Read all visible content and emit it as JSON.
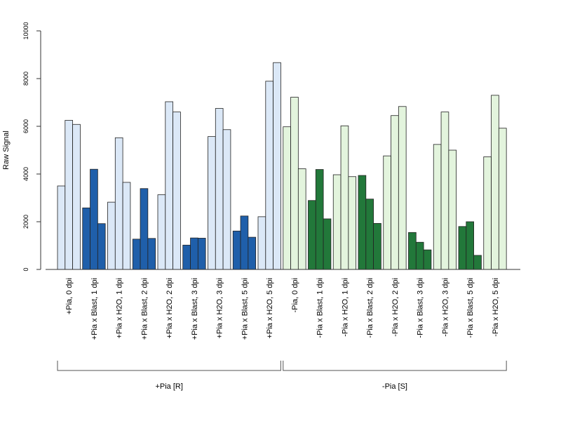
{
  "chart_data": {
    "type": "bar",
    "ylabel": "Raw Signal",
    "ylim": [
      0,
      10000
    ],
    "yticks": [
      0,
      2000,
      4000,
      6000,
      8000,
      10000
    ],
    "categories": [
      "+Pia, 0 dpi",
      "+Pia x Blast, 1 dpi",
      "+Pia x H2O, 1 dpi",
      "+Pia x Blast, 2 dpi",
      "+Pia x H2O, 2 dpi",
      "+Pia x Blast, 3 dpi",
      "+Pia x H2O, 3 dpi",
      "+Pia x Blast, 5 dpi",
      "+Pia x H2O, 5 dpi",
      "-Pia, 0 dpi",
      "-Pia x Blast, 1 dpi",
      "-Pia x H2O, 1 dpi",
      "-Pia x Blast, 2 dpi",
      "-Pia x H2O, 2 dpi",
      "-Pia x Blast, 3 dpi",
      "-Pia x H2O, 3 dpi",
      "-Pia x Blast, 5 dpi",
      "-Pia x H2O, 5 dpi"
    ],
    "values": [
      [
        3500,
        6250,
        6080
      ],
      [
        2580,
        4200,
        1920
      ],
      [
        2820,
        5520,
        3650
      ],
      [
        1270,
        3390,
        1300
      ],
      [
        3130,
        7030,
        6600
      ],
      [
        1020,
        1320,
        1310
      ],
      [
        5570,
        6750,
        5860
      ],
      [
        1610,
        2240,
        1350
      ],
      [
        2210,
        7890,
        8670
      ],
      [
        5980,
        7220,
        4220
      ],
      [
        2890,
        4190,
        2120
      ],
      [
        3970,
        6020,
        3890
      ],
      [
        3940,
        2950,
        1930
      ],
      [
        4760,
        6450,
        6830
      ],
      [
        1550,
        1140,
        820
      ],
      [
        5240,
        6600,
        5000
      ],
      [
        1800,
        2000,
        590
      ],
      [
        4720,
        7300,
        5920
      ]
    ],
    "bar_colors": [
      "#dbe8f7",
      "#1f5faa",
      "#dbe8f7",
      "#1f5faa",
      "#dbe8f7",
      "#1f5faa",
      "#dbe8f7",
      "#1f5faa",
      "#dbe8f7",
      "#e3f4dd",
      "#22783a",
      "#e3f4dd",
      "#22783a",
      "#e3f4dd",
      "#22783a",
      "#e3f4dd",
      "#22783a",
      "#e3f4dd"
    ],
    "groups": [
      {
        "label": "+Pia [R]",
        "from": 0,
        "to": 8
      },
      {
        "label": "-Pia [S]",
        "from": 9,
        "to": 17
      }
    ]
  }
}
